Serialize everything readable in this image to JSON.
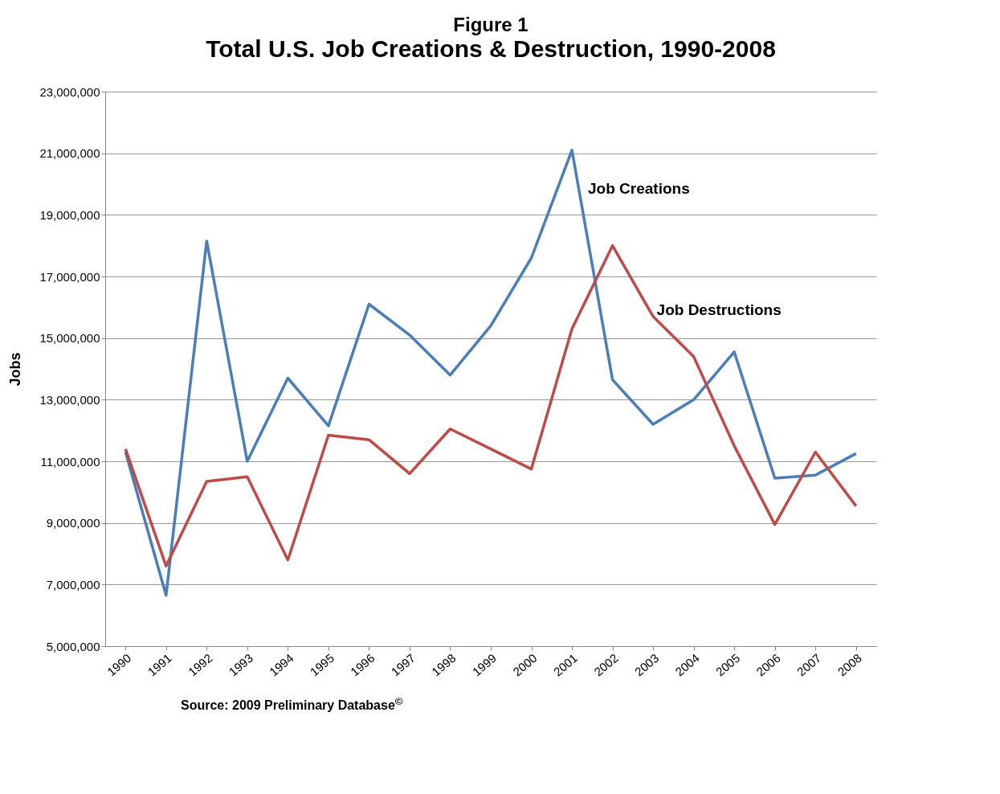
{
  "chart_data": {
    "type": "line",
    "title": "Figure 1",
    "subtitle": "Total U.S. Job Creations & Destruction, 1990-2008",
    "ylabel": "Jobs",
    "categories": [
      "1990",
      "1991",
      "1992",
      "1993",
      "1994",
      "1995",
      "1996",
      "1997",
      "1998",
      "1999",
      "2000",
      "2001",
      "2002",
      "2003",
      "2004",
      "2005",
      "2006",
      "2007",
      "2008"
    ],
    "series": [
      {
        "name": "Job Creations",
        "color": "#4a7ebb",
        "values": [
          11300000,
          6650000,
          18150000,
          11000000,
          13700000,
          12150000,
          16100000,
          15100000,
          13800000,
          15400000,
          17600000,
          21100000,
          13650000,
          12200000,
          13000000,
          14550000,
          10450000,
          10550000,
          11250000
        ]
      },
      {
        "name": "Job Destructions",
        "color": "#be4b48",
        "values": [
          11400000,
          7600000,
          10350000,
          10500000,
          7800000,
          11850000,
          11700000,
          10600000,
          12050000,
          11400000,
          10750000,
          15300000,
          18000000,
          15700000,
          14400000,
          11500000,
          8950000,
          11300000,
          9550000
        ]
      }
    ],
    "ylim": [
      5000000,
      23000000
    ],
    "yticks": [
      {
        "value": 5000000,
        "label": "5,000,000"
      },
      {
        "value": 7000000,
        "label": "7,000,000"
      },
      {
        "value": 9000000,
        "label": "9,000,000"
      },
      {
        "value": 11000000,
        "label": "11,000,000"
      },
      {
        "value": 13000000,
        "label": "13,000,000"
      },
      {
        "value": 15000000,
        "label": "15,000,000"
      },
      {
        "value": 17000000,
        "label": "17,000,000"
      },
      {
        "value": 19000000,
        "label": "19,000,000"
      },
      {
        "value": 21000000,
        "label": "21,000,000"
      },
      {
        "value": 23000000,
        "label": "23,000,000"
      }
    ],
    "grid": "y",
    "marker": "none",
    "line_style": "solid",
    "annotations": [
      "Source: 2009 Preliminary Database$^{©}$"
    ]
  }
}
